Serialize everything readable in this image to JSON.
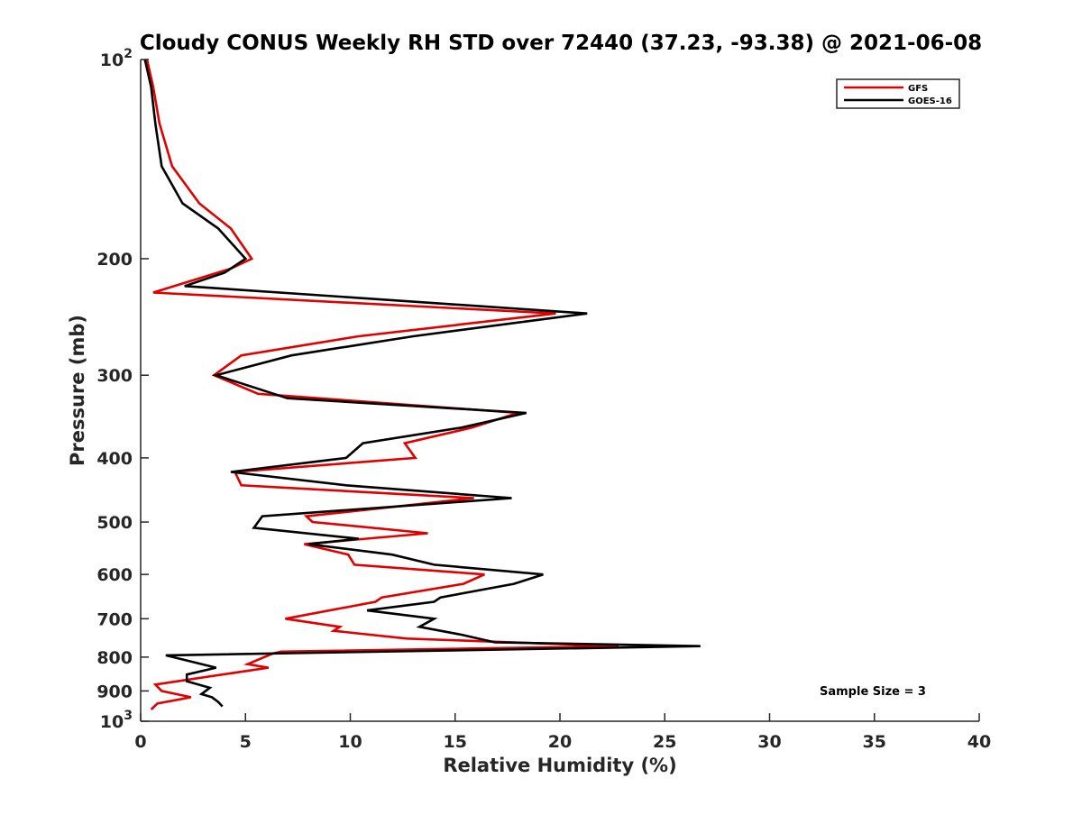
{
  "chart_data": {
    "type": "line",
    "title": "Cloudy CONUS Weekly RH STD over 72440 (37.23, -93.38) @ 2021-06-08",
    "xlabel": "Relative Humidity (%)",
    "ylabel": "Pressure (mb)",
    "xlim": [
      0,
      40
    ],
    "ylim": [
      100,
      1000
    ],
    "y_scale": "log",
    "y_reversed": true,
    "x_ticks": [
      "0",
      "5",
      "10",
      "15",
      "20",
      "25",
      "30",
      "35",
      "40"
    ],
    "y_ticks": [
      {
        "value": 100,
        "base": "10",
        "exp": "2"
      },
      {
        "value": 200,
        "label": "200"
      },
      {
        "value": 300,
        "label": "300"
      },
      {
        "value": 400,
        "label": "400"
      },
      {
        "value": 500,
        "label": "500"
      },
      {
        "value": 600,
        "label": "600"
      },
      {
        "value": 700,
        "label": "700"
      },
      {
        "value": 800,
        "label": "800"
      },
      {
        "value": 900,
        "label": "900"
      },
      {
        "value": 1000,
        "base": "10",
        "exp": "3"
      }
    ],
    "grid": false,
    "legend_position": "top-right",
    "annotation": "Sample Size = 3",
    "series": [
      {
        "name": "GFS",
        "color": "#e00000",
        "points": [
          [
            0.3,
            100
          ],
          [
            0.6,
            110
          ],
          [
            0.9,
            125
          ],
          [
            1.5,
            145
          ],
          [
            2.8,
            165
          ],
          [
            4.3,
            180
          ],
          [
            5.3,
            200
          ],
          [
            4.3,
            207
          ],
          [
            0.6,
            225
          ],
          [
            19.8,
            242
          ],
          [
            10.4,
            262
          ],
          [
            4.8,
            280
          ],
          [
            3.5,
            300
          ],
          [
            5.6,
            320
          ],
          [
            18.0,
            342
          ],
          [
            15.8,
            360
          ],
          [
            12.6,
            380
          ],
          [
            13.1,
            400
          ],
          [
            4.5,
            420
          ],
          [
            4.8,
            440
          ],
          [
            15.9,
            460
          ],
          [
            7.9,
            490
          ],
          [
            8.2,
            500
          ],
          [
            13.7,
            520
          ],
          [
            7.8,
            540
          ],
          [
            9.9,
            560
          ],
          [
            10.2,
            580
          ],
          [
            16.4,
            600
          ],
          [
            15.4,
            620
          ],
          [
            11.5,
            650
          ],
          [
            11.2,
            660
          ],
          [
            6.9,
            700
          ],
          [
            9.5,
            720
          ],
          [
            9.2,
            730
          ],
          [
            12.7,
            750
          ],
          [
            22.8,
            770
          ],
          [
            6.7,
            785
          ],
          [
            6.3,
            790
          ],
          [
            5.1,
            820
          ],
          [
            6.1,
            830
          ],
          [
            0.7,
            880
          ],
          [
            1.0,
            900
          ],
          [
            2.4,
            920
          ],
          [
            0.8,
            940
          ],
          [
            0.5,
            960
          ]
        ]
      },
      {
        "name": "GOES-16",
        "color": "#000000",
        "points": [
          [
            0.2,
            100
          ],
          [
            0.5,
            110
          ],
          [
            0.7,
            125
          ],
          [
            1.0,
            145
          ],
          [
            2.0,
            165
          ],
          [
            3.7,
            180
          ],
          [
            5.0,
            200
          ],
          [
            4.0,
            210
          ],
          [
            2.1,
            220
          ],
          [
            21.3,
            242
          ],
          [
            13.0,
            262
          ],
          [
            7.2,
            280
          ],
          [
            3.6,
            300
          ],
          [
            7.0,
            325
          ],
          [
            18.4,
            342
          ],
          [
            15.3,
            360
          ],
          [
            10.6,
            380
          ],
          [
            9.8,
            400
          ],
          [
            4.3,
            420
          ],
          [
            9.8,
            440
          ],
          [
            17.7,
            460
          ],
          [
            5.8,
            490
          ],
          [
            5.4,
            510
          ],
          [
            10.4,
            530
          ],
          [
            8.0,
            540
          ],
          [
            12.0,
            560
          ],
          [
            14.0,
            580
          ],
          [
            19.2,
            600
          ],
          [
            17.8,
            620
          ],
          [
            14.3,
            650
          ],
          [
            14.0,
            660
          ],
          [
            10.8,
            680
          ],
          [
            14.0,
            700
          ],
          [
            13.3,
            720
          ],
          [
            15.3,
            740
          ],
          [
            16.9,
            760
          ],
          [
            26.7,
            770
          ],
          [
            1.2,
            795
          ],
          [
            3.6,
            830
          ],
          [
            2.2,
            850
          ],
          [
            2.2,
            870
          ],
          [
            3.3,
            890
          ],
          [
            2.9,
            910
          ],
          [
            3.4,
            920
          ],
          [
            3.7,
            935
          ],
          [
            3.9,
            950
          ]
        ]
      }
    ]
  }
}
